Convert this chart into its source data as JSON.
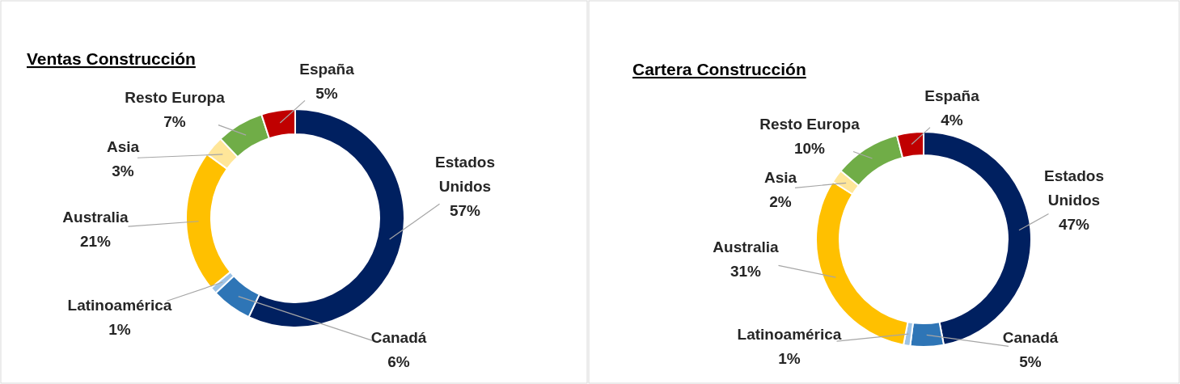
{
  "chart_data": [
    {
      "type": "donut",
      "title": "Ventas Construcción",
      "categories": [
        "Estados Unidos",
        "Canadá",
        "Latinoamérica",
        "Australia",
        "Asia",
        "Resto Europa",
        "España"
      ],
      "values": [
        57,
        6,
        1,
        21,
        3,
        7,
        5
      ],
      "colors": [
        "#002060",
        "#2e75b6",
        "#9dc3e6",
        "#ffc000",
        "#ffe699",
        "#70ad47",
        "#c00000"
      ],
      "value_labels": [
        "57%",
        "6%",
        "1%",
        "21%",
        "3%",
        "7%",
        "5%"
      ]
    },
    {
      "type": "donut",
      "title": "Cartera Construcción",
      "categories": [
        "Estados Unidos",
        "Canadá",
        "Latinoamérica",
        "Australia",
        "Asia",
        "Resto Europa",
        "España"
      ],
      "values": [
        47,
        5,
        1,
        31,
        2,
        10,
        4
      ],
      "colors": [
        "#002060",
        "#2e75b6",
        "#9dc3e6",
        "#ffc000",
        "#ffe699",
        "#70ad47",
        "#c00000"
      ],
      "value_labels": [
        "47%",
        "5%",
        "1%",
        "31%",
        "2%",
        "10%",
        "4%"
      ]
    }
  ]
}
